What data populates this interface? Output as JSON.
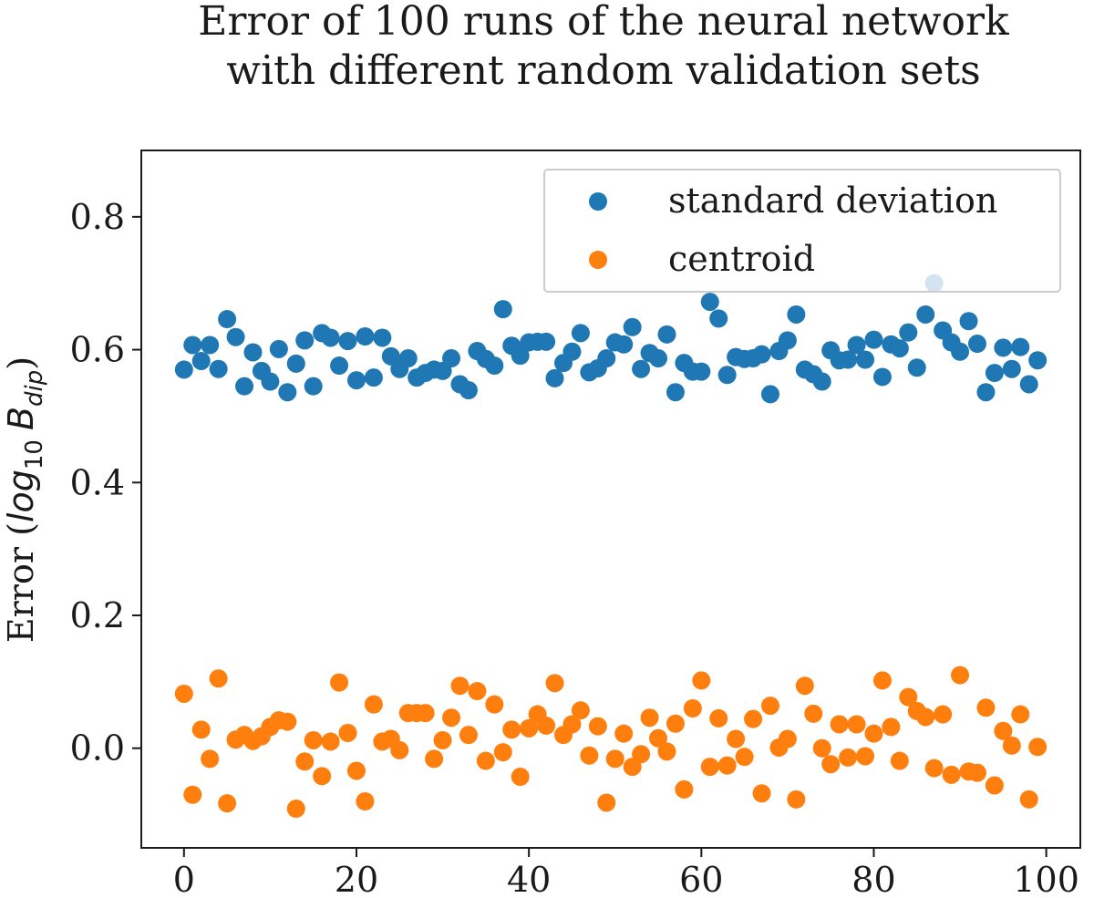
{
  "chart_data": {
    "type": "scatter",
    "title": [
      "Error of 100 runs of the neural network",
      "with different random validation sets"
    ],
    "xlabel": "",
    "ylabel": {
      "prefix": "Error (",
      "log": "log",
      "base": "10",
      "var": "B",
      "sub": "dip",
      "suffix": ")"
    },
    "xlim": [
      -4.95,
      103.95
    ],
    "ylim": [
      -0.15,
      0.9
    ],
    "xticks": [
      0,
      20,
      40,
      60,
      80,
      100
    ],
    "yticks": [
      0.0,
      0.2,
      0.4,
      0.6,
      0.8
    ],
    "ytick_labels": [
      "0.0",
      "0.2",
      "0.4",
      "0.6",
      "0.8"
    ],
    "grid": false,
    "legend_position": "upper-right",
    "series": [
      {
        "name": "standard deviation",
        "color": "#1f77b4",
        "x": [
          0,
          1,
          2,
          3,
          4,
          5,
          6,
          7,
          8,
          9,
          10,
          11,
          12,
          13,
          14,
          15,
          16,
          17,
          18,
          19,
          20,
          21,
          22,
          23,
          24,
          25,
          26,
          27,
          28,
          29,
          30,
          31,
          32,
          33,
          34,
          35,
          36,
          37,
          38,
          39,
          40,
          41,
          42,
          43,
          44,
          45,
          46,
          47,
          48,
          49,
          50,
          51,
          52,
          53,
          54,
          55,
          56,
          57,
          58,
          59,
          60,
          61,
          62,
          63,
          64,
          65,
          66,
          67,
          68,
          69,
          70,
          71,
          72,
          73,
          74,
          75,
          76,
          77,
          78,
          79,
          80,
          81,
          82,
          83,
          84,
          85,
          86,
          87,
          88,
          89,
          90,
          91,
          92,
          93,
          94,
          95,
          96,
          97,
          98,
          99
        ],
        "y": [
          0.57,
          0.607,
          0.583,
          0.607,
          0.571,
          0.646,
          0.619,
          0.545,
          0.596,
          0.568,
          0.552,
          0.601,
          0.536,
          0.579,
          0.614,
          0.545,
          0.625,
          0.618,
          0.576,
          0.613,
          0.554,
          0.62,
          0.558,
          0.618,
          0.59,
          0.571,
          0.587,
          0.558,
          0.565,
          0.57,
          0.568,
          0.587,
          0.548,
          0.539,
          0.598,
          0.586,
          0.576,
          0.661,
          0.606,
          0.591,
          0.611,
          0.612,
          0.612,
          0.557,
          0.58,
          0.597,
          0.625,
          0.566,
          0.572,
          0.587,
          0.611,
          0.608,
          0.634,
          0.571,
          0.595,
          0.587,
          0.623,
          0.536,
          0.58,
          0.567,
          0.567,
          0.672,
          0.647,
          0.562,
          0.589,
          0.586,
          0.587,
          0.593,
          0.533,
          0.598,
          0.614,
          0.653,
          0.57,
          0.563,
          0.552,
          0.599,
          0.584,
          0.585,
          0.607,
          0.585,
          0.615,
          0.559,
          0.608,
          0.602,
          0.626,
          0.573,
          0.653,
          0.7,
          0.629,
          0.611,
          0.597,
          0.643,
          0.609,
          0.536,
          0.565,
          0.603,
          0.571,
          0.604,
          0.548,
          0.584
        ]
      },
      {
        "name": "centroid",
        "color": "#ff7f0e",
        "x": [
          0,
          1,
          2,
          3,
          4,
          5,
          6,
          7,
          8,
          9,
          10,
          11,
          12,
          13,
          14,
          15,
          16,
          17,
          18,
          19,
          20,
          21,
          22,
          23,
          24,
          25,
          26,
          27,
          28,
          29,
          30,
          31,
          32,
          33,
          34,
          35,
          36,
          37,
          38,
          39,
          40,
          41,
          42,
          43,
          44,
          45,
          46,
          47,
          48,
          49,
          50,
          51,
          52,
          53,
          54,
          55,
          56,
          57,
          58,
          59,
          60,
          61,
          62,
          63,
          64,
          65,
          66,
          67,
          68,
          69,
          70,
          71,
          72,
          73,
          74,
          75,
          76,
          77,
          78,
          79,
          80,
          81,
          82,
          83,
          84,
          85,
          86,
          87,
          88,
          89,
          90,
          91,
          92,
          93,
          94,
          95,
          96,
          97,
          98,
          99
        ],
        "y": [
          0.082,
          -0.07,
          0.028,
          -0.016,
          0.105,
          -0.083,
          0.013,
          0.02,
          0.011,
          0.018,
          0.032,
          0.042,
          0.04,
          -0.091,
          -0.02,
          0.012,
          -0.042,
          0.01,
          0.099,
          0.023,
          -0.034,
          -0.08,
          0.066,
          0.01,
          0.014,
          -0.003,
          0.053,
          0.053,
          0.053,
          -0.016,
          0.012,
          0.046,
          0.094,
          0.02,
          0.086,
          -0.019,
          0.066,
          -0.006,
          0.028,
          -0.043,
          0.03,
          0.051,
          0.034,
          0.098,
          0.02,
          0.036,
          0.057,
          -0.011,
          0.033,
          -0.082,
          -0.016,
          0.022,
          -0.028,
          -0.009,
          0.046,
          0.015,
          -0.005,
          0.037,
          -0.062,
          0.06,
          0.102,
          -0.028,
          0.045,
          -0.026,
          0.014,
          -0.013,
          0.044,
          -0.068,
          0.064,
          0.001,
          0.014,
          -0.077,
          0.094,
          0.052,
          0.0,
          -0.024,
          0.036,
          -0.014,
          0.036,
          -0.012,
          0.022,
          0.102,
          0.032,
          -0.019,
          0.077,
          0.056,
          0.047,
          -0.03,
          0.051,
          -0.04,
          0.11,
          -0.035,
          -0.037,
          0.061,
          -0.056,
          0.026,
          0.004,
          0.051,
          -0.077,
          0.002
        ]
      }
    ]
  }
}
